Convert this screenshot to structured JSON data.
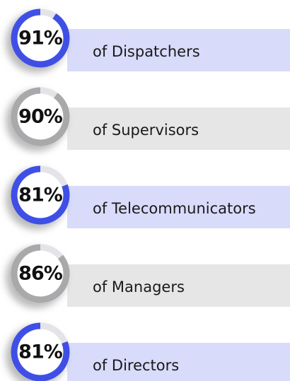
{
  "chart_data": {
    "type": "percent-list",
    "categories": [
      "of Dispatchers",
      "of Supervisors",
      "of Telecommunicators",
      "of Managers",
      "of Directors"
    ],
    "values": [
      91,
      90,
      81,
      86,
      81
    ],
    "value_labels": [
      "91%",
      "90%",
      "81%",
      "86%",
      "81%"
    ],
    "colors": [
      "#3f4fe6",
      "#a9a9ab",
      "#3f4fe6",
      "#a9a9ab",
      "#3f4fe6"
    ],
    "bar_colors": [
      "#d8dbfa",
      "#e6e6e7",
      "#d8dbfa",
      "#e6e6e7",
      "#d8dbfa"
    ]
  }
}
